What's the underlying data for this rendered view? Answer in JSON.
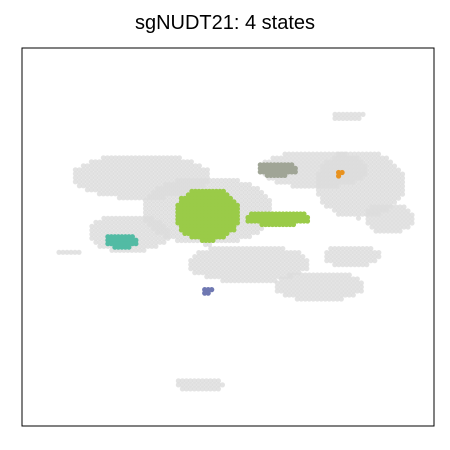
{
  "chart_data": {
    "type": "scatter",
    "title": "sgNUDT21: 4 states",
    "xlabel": "",
    "ylabel": "",
    "xlim": [
      0,
      100
    ],
    "ylim": [
      0,
      100
    ],
    "grid": false,
    "axis_ticks": false,
    "background_color": "#dcdcdc",
    "background_regions": [
      {
        "name": "upper-left-lobe",
        "cx": 29,
        "cy": 66,
        "rx": 17,
        "ry": 6
      },
      {
        "name": "center-mass",
        "cx": 45,
        "cy": 57,
        "rx": 16,
        "ry": 9
      },
      {
        "name": "left-arm",
        "cx": 26,
        "cy": 51,
        "rx": 10,
        "ry": 5
      },
      {
        "name": "upper-right-cluster",
        "cx": 71,
        "cy": 68,
        "rx": 13,
        "ry": 5
      },
      {
        "name": "right-cluster",
        "cx": 82,
        "cy": 64,
        "rx": 11,
        "ry": 9
      },
      {
        "name": "right-extension",
        "cx": 89,
        "cy": 55,
        "rx": 6,
        "ry": 4
      },
      {
        "name": "top-right-islet",
        "cx": 79,
        "cy": 82,
        "rx": 4,
        "ry": 1.5
      },
      {
        "name": "bottom-right-tail",
        "cx": 72,
        "cy": 37,
        "rx": 11,
        "ry": 4
      },
      {
        "name": "middle-band",
        "cx": 55,
        "cy": 43,
        "rx": 15,
        "ry": 5
      },
      {
        "name": "mid-right-band",
        "cx": 80,
        "cy": 45,
        "rx": 7,
        "ry": 3
      },
      {
        "name": "far-left-sliver",
        "cx": 11,
        "cy": 46,
        "rx": 3,
        "ry": 1
      },
      {
        "name": "bottom-islet",
        "cx": 43,
        "cy": 11,
        "rx": 6,
        "ry": 2
      }
    ],
    "series": [
      {
        "name": "",
        "color": "#a0a596",
        "region": {
          "cx": 62,
          "cy": 68,
          "rx": 5,
          "ry": 2
        }
      },
      {
        "name": "",
        "color": "#e8921f",
        "region": {
          "cx": 77,
          "cy": 67,
          "rx": 1,
          "ry": 1
        }
      },
      {
        "name": "",
        "color": "#9acb48",
        "region": {
          "cx": 45,
          "cy": 56,
          "rx": 8,
          "ry": 7
        }
      },
      {
        "name": "",
        "color": "#9acb48",
        "region": {
          "cx": 62,
          "cy": 55,
          "rx": 8,
          "ry": 2
        }
      },
      {
        "name": "",
        "color": "#52bba4",
        "region": {
          "cx": 24,
          "cy": 49,
          "rx": 4,
          "ry": 2
        }
      },
      {
        "name": "",
        "color": "#6f78b2",
        "region": {
          "cx": 45,
          "cy": 36,
          "rx": 1.5,
          "ry": 1
        }
      }
    ]
  }
}
